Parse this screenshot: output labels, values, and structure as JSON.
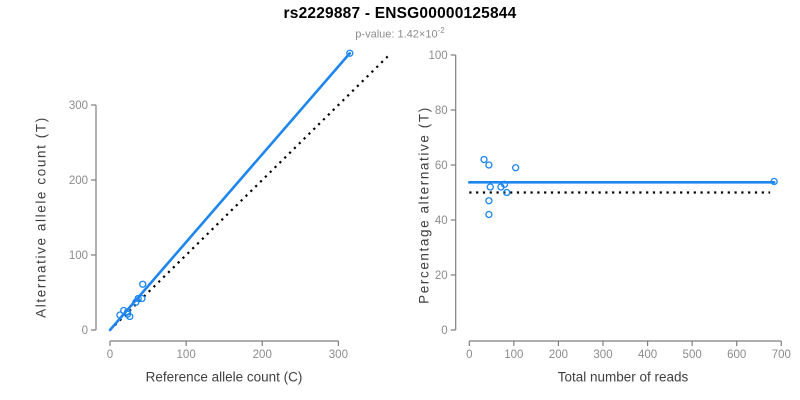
{
  "header": {
    "title": "rs2229887 - ENSG00000125844",
    "pvalue_prefix": "p-value: 1.42×10",
    "pvalue_exponent": "-2"
  },
  "colors": {
    "accent_blue": "#1e86ee",
    "axis_line_gray": "#7f7f7f",
    "tick_label_gray": "#8c8c8c",
    "reference_line_black": "#000000",
    "background": "#ffffff"
  },
  "chart_data": [
    {
      "type": "scatter",
      "panel": "left",
      "xlabel": "Reference allele count (C)",
      "ylabel": "Alternative allele count (T)",
      "xlim": [
        0,
        345
      ],
      "ylim": [
        0,
        370
      ],
      "x_ticks": [
        0,
        100,
        200,
        300
      ],
      "y_ticks": [
        0,
        100,
        200,
        300
      ],
      "grid": false,
      "points": [
        [
          13,
          20
        ],
        [
          18,
          26
        ],
        [
          23,
          24
        ],
        [
          23,
          21
        ],
        [
          26,
          18
        ],
        [
          34,
          37
        ],
        [
          37,
          42
        ],
        [
          42,
          42
        ],
        [
          43,
          61
        ],
        [
          315,
          369
        ]
      ],
      "fit_line": {
        "style": "solid",
        "color": "#1e86ee",
        "x": [
          0,
          315
        ],
        "y": [
          0,
          369
        ]
      },
      "reference_line": {
        "style": "dotted",
        "color": "#000000",
        "x": [
          0,
          366
        ],
        "y": [
          0,
          366
        ]
      }
    },
    {
      "type": "scatter",
      "panel": "right",
      "xlabel": "Total number of reads",
      "ylabel": "Percentage alternative (T)",
      "xlim": [
        0,
        700
      ],
      "ylim": [
        0,
        100
      ],
      "x_ticks": [
        0,
        100,
        200,
        300,
        400,
        500,
        600,
        700
      ],
      "y_ticks": [
        0,
        20,
        40,
        60,
        80,
        100
      ],
      "grid": false,
      "points": [
        [
          33,
          62
        ],
        [
          44,
          60
        ],
        [
          44,
          47
        ],
        [
          44,
          42
        ],
        [
          47,
          52
        ],
        [
          71,
          52
        ],
        [
          79,
          53
        ],
        [
          84,
          50
        ],
        [
          104,
          59
        ],
        [
          684,
          54
        ]
      ],
      "fit_line": {
        "style": "solid",
        "color": "#1e86ee",
        "x": [
          0,
          684
        ],
        "y": [
          53.7,
          53.7
        ]
      },
      "reference_line": {
        "style": "dotted",
        "color": "#000000",
        "x": [
          0,
          675
        ],
        "y": [
          50,
          50
        ]
      }
    }
  ]
}
